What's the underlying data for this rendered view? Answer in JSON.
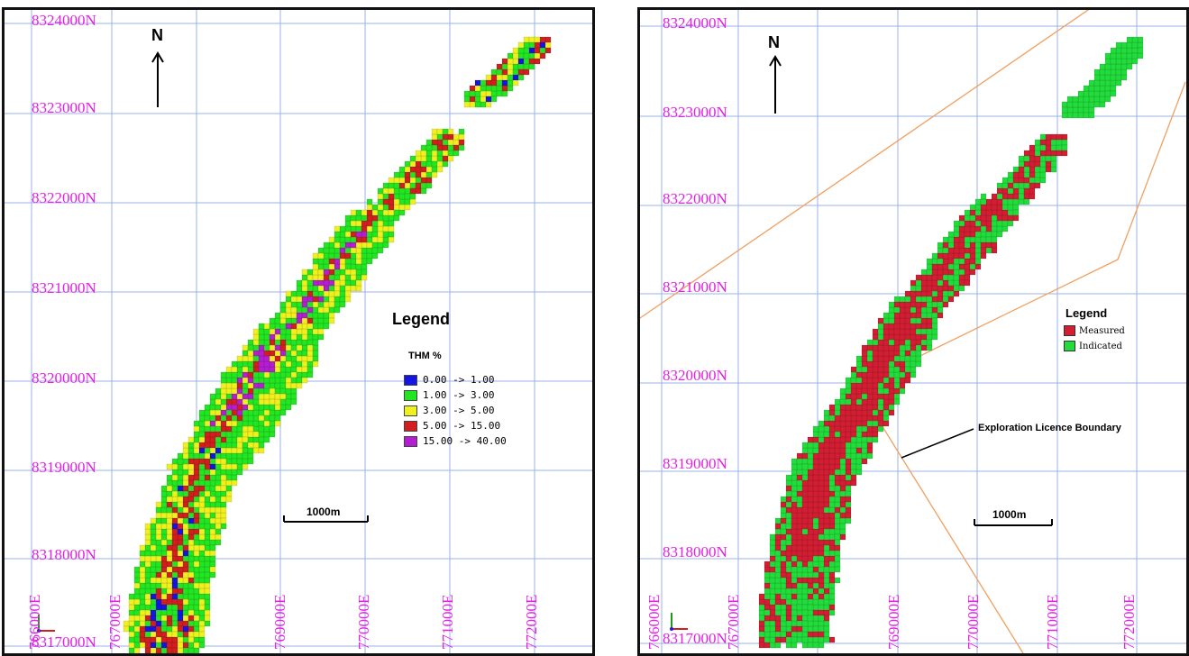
{
  "colors": {
    "grid": "#9ab0e8",
    "coord_label": "#e61ee6",
    "boundary": "#f0a060",
    "thm_0_1": "#1414e6",
    "thm_1_3": "#22e622",
    "thm_3_5": "#f0f01e",
    "thm_5_15": "#d21e1e",
    "thm_15_40": "#b41ed2",
    "measured": "#d21e32",
    "indicated": "#22dc3c"
  },
  "left": {
    "north_label": "N",
    "northings": [
      "8324000N",
      "8323000N",
      "8322000N",
      "8321000N",
      "8320000N",
      "8319000N",
      "8318000N",
      "8317000N"
    ],
    "eastings": [
      "766000E",
      "767000E",
      "769000E",
      "770000E",
      "771000E",
      "772000E"
    ],
    "legend": {
      "title": "Legend",
      "subtitle": "THM %",
      "items": [
        {
          "label": "0.00 -> 1.00",
          "color": "#1414e6"
        },
        {
          "label": "1.00 -> 3.00",
          "color": "#22e622"
        },
        {
          "label": "3.00 -> 5.00",
          "color": "#f0f01e"
        },
        {
          "label": "5.00 -> 15.00",
          "color": "#d21e1e"
        },
        {
          "label": "15.00 -> 40.00",
          "color": "#b41ed2"
        }
      ]
    },
    "scale_bar": "1000m"
  },
  "right": {
    "north_label": "N",
    "northings": [
      "8324000N",
      "8323000N",
      "8322000N",
      "8321000N",
      "8320000N",
      "8319000N",
      "8318000N",
      "8317000N"
    ],
    "eastings": [
      "766000E",
      "767000E",
      "769000E",
      "770000E",
      "771000E",
      "772000E"
    ],
    "legend": {
      "title": "Legend",
      "items": [
        {
          "label": "Measured",
          "color": "#d21e32"
        },
        {
          "label": "Indicated",
          "color": "#22dc3c"
        }
      ]
    },
    "annotation": "Exploration Licence Boundary",
    "scale_bar": "1000m"
  }
}
